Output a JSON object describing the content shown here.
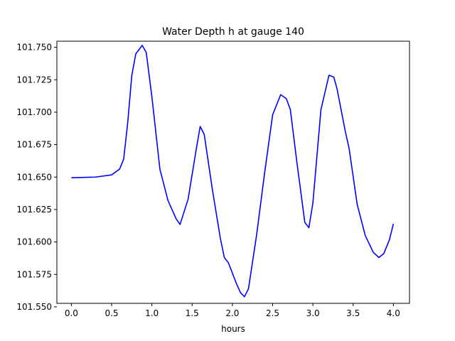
{
  "chart_data": {
    "type": "line",
    "title": "Water Depth h at gauge 140",
    "xlabel": "hours",
    "ylabel": "",
    "xlim": [
      -0.18,
      4.2
    ],
    "ylim": [
      101.5527,
      101.7547
    ],
    "xticks": [
      0.0,
      0.5,
      1.0,
      1.5,
      2.0,
      2.5,
      3.0,
      3.5,
      4.0
    ],
    "xtick_labels": [
      "0.0",
      "0.5",
      "1.0",
      "1.5",
      "2.0",
      "2.5",
      "3.0",
      "3.5",
      "4.0"
    ],
    "yticks": [
      101.55,
      101.575,
      101.6,
      101.625,
      101.65,
      101.675,
      101.7,
      101.725,
      101.75
    ],
    "ytick_labels": [
      "101.550",
      "101.575",
      "101.600",
      "101.625",
      "101.650",
      "101.675",
      "101.700",
      "101.725",
      "101.750"
    ],
    "grid": false,
    "series": [
      {
        "color": "#0000ff",
        "x": [
          0.0,
          0.3,
          0.5,
          0.6,
          0.65,
          0.7,
          0.75,
          0.8,
          0.85,
          0.88,
          0.93,
          1.0,
          1.1,
          1.2,
          1.25,
          1.3,
          1.35,
          1.45,
          1.55,
          1.6,
          1.65,
          1.75,
          1.85,
          1.9,
          1.95,
          2.05,
          2.1,
          2.15,
          2.2,
          2.3,
          2.4,
          2.5,
          2.6,
          2.67,
          2.72,
          2.8,
          2.9,
          2.95,
          3.0,
          3.1,
          3.2,
          3.26,
          3.3,
          3.4,
          3.45,
          3.55,
          3.65,
          3.75,
          3.82,
          3.88,
          3.95,
          4.0
        ],
        "y": [
          101.6495,
          101.65,
          101.6517,
          101.6562,
          101.664,
          101.692,
          101.728,
          101.745,
          101.749,
          101.7515,
          101.746,
          101.712,
          101.656,
          101.632,
          101.625,
          101.618,
          101.6135,
          101.633,
          101.671,
          101.689,
          101.683,
          101.641,
          101.603,
          101.588,
          101.584,
          101.568,
          101.561,
          101.5578,
          101.564,
          101.605,
          101.653,
          101.698,
          101.7135,
          101.7105,
          101.702,
          101.662,
          101.615,
          101.611,
          101.63,
          101.702,
          101.7285,
          101.727,
          101.718,
          101.686,
          101.672,
          101.629,
          101.605,
          101.592,
          101.588,
          101.591,
          101.6015,
          101.614
        ]
      }
    ]
  }
}
